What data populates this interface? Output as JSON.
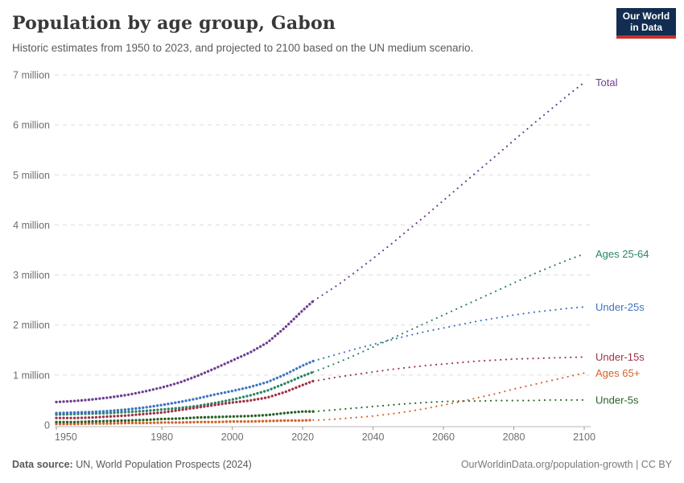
{
  "header": {
    "title": "Population by age group, Gabon",
    "subtitle": "Historic estimates from 1950 to 2023, and projected to 2100 based on the UN medium scenario.",
    "logo": {
      "line1": "Our World",
      "line2": "in Data",
      "bg_color": "#122d50",
      "accent_color": "#c8322b"
    }
  },
  "footer": {
    "source_label": "Data source:",
    "source_text": " UN, World Population Prospects (2024)",
    "credit": "OurWorldinData.org/population-growth | CC BY"
  },
  "chart_data": {
    "type": "line",
    "title": "Population by age group, Gabon",
    "unit": "million people",
    "xlim": [
      1950,
      2100
    ],
    "ylim": [
      0,
      7
    ],
    "grid": "horizontal-dashed",
    "legend_position": "right-edge-labels",
    "projection_start_year": 2023,
    "line_style_historic": "dense-dotted",
    "line_style_projection": "sparse-dotted",
    "x_ticks": [
      1950,
      1980,
      2000,
      2020,
      2040,
      2060,
      2080,
      2100
    ],
    "x_tick_labels": [
      "1950",
      "1980",
      "2000",
      "2020",
      "2040",
      "2060",
      "2080",
      "2100"
    ],
    "y_ticks": [
      0,
      1,
      2,
      3,
      4,
      5,
      6,
      7
    ],
    "y_tick_labels": [
      "0",
      "1 million",
      "2 million",
      "3 million",
      "4 million",
      "5 million",
      "6 million",
      "7 million"
    ],
    "years": [
      1950,
      1955,
      1960,
      1965,
      1970,
      1975,
      1980,
      1985,
      1990,
      1995,
      2000,
      2005,
      2010,
      2015,
      2020,
      2023,
      2025,
      2030,
      2035,
      2040,
      2045,
      2050,
      2055,
      2060,
      2065,
      2070,
      2075,
      2080,
      2085,
      2090,
      2095,
      2100
    ],
    "series": [
      {
        "name": "Total",
        "color": "#6d3e91",
        "values": [
          0.46,
          0.48,
          0.51,
          0.55,
          0.6,
          0.67,
          0.75,
          0.85,
          0.98,
          1.13,
          1.29,
          1.45,
          1.65,
          1.95,
          2.29,
          2.48,
          2.57,
          2.8,
          3.06,
          3.33,
          3.61,
          3.9,
          4.19,
          4.49,
          4.79,
          5.09,
          5.39,
          5.69,
          5.99,
          6.28,
          6.57,
          6.85
        ]
      },
      {
        "name": "Ages 25-64",
        "color": "#2c8465",
        "values": [
          0.21,
          0.22,
          0.23,
          0.24,
          0.26,
          0.28,
          0.31,
          0.34,
          0.38,
          0.44,
          0.51,
          0.59,
          0.69,
          0.83,
          0.98,
          1.06,
          1.11,
          1.25,
          1.4,
          1.56,
          1.72,
          1.88,
          2.04,
          2.2,
          2.36,
          2.52,
          2.68,
          2.84,
          3.0,
          3.15,
          3.29,
          3.42
        ]
      },
      {
        "name": "Under-25s",
        "color": "#3d73c4",
        "values": [
          0.24,
          0.25,
          0.26,
          0.28,
          0.31,
          0.35,
          0.4,
          0.46,
          0.53,
          0.61,
          0.68,
          0.76,
          0.86,
          1.01,
          1.19,
          1.28,
          1.32,
          1.42,
          1.52,
          1.61,
          1.7,
          1.79,
          1.87,
          1.94,
          2.01,
          2.08,
          2.14,
          2.2,
          2.25,
          2.29,
          2.33,
          2.36
        ]
      },
      {
        "name": "Under-15s",
        "color": "#9e3347",
        "values": [
          0.14,
          0.14,
          0.15,
          0.17,
          0.19,
          0.22,
          0.25,
          0.3,
          0.35,
          0.4,
          0.45,
          0.49,
          0.55,
          0.66,
          0.8,
          0.88,
          0.9,
          0.96,
          1.01,
          1.06,
          1.11,
          1.15,
          1.19,
          1.22,
          1.25,
          1.28,
          1.3,
          1.32,
          1.33,
          1.34,
          1.35,
          1.36
        ]
      },
      {
        "name": "Ages 65+",
        "color": "#d4622b",
        "values": [
          0.02,
          0.02,
          0.03,
          0.03,
          0.04,
          0.04,
          0.05,
          0.05,
          0.06,
          0.06,
          0.07,
          0.07,
          0.08,
          0.09,
          0.09,
          0.1,
          0.1,
          0.12,
          0.15,
          0.18,
          0.22,
          0.27,
          0.33,
          0.4,
          0.47,
          0.55,
          0.63,
          0.72,
          0.8,
          0.88,
          0.96,
          1.04
        ]
      },
      {
        "name": "Under-5s",
        "color": "#266327",
        "values": [
          0.06,
          0.06,
          0.07,
          0.08,
          0.09,
          0.1,
          0.12,
          0.13,
          0.15,
          0.16,
          0.17,
          0.18,
          0.2,
          0.24,
          0.27,
          0.27,
          0.28,
          0.31,
          0.34,
          0.37,
          0.4,
          0.43,
          0.45,
          0.47,
          0.48,
          0.48,
          0.49,
          0.49,
          0.49,
          0.5,
          0.5,
          0.5
        ]
      }
    ]
  }
}
